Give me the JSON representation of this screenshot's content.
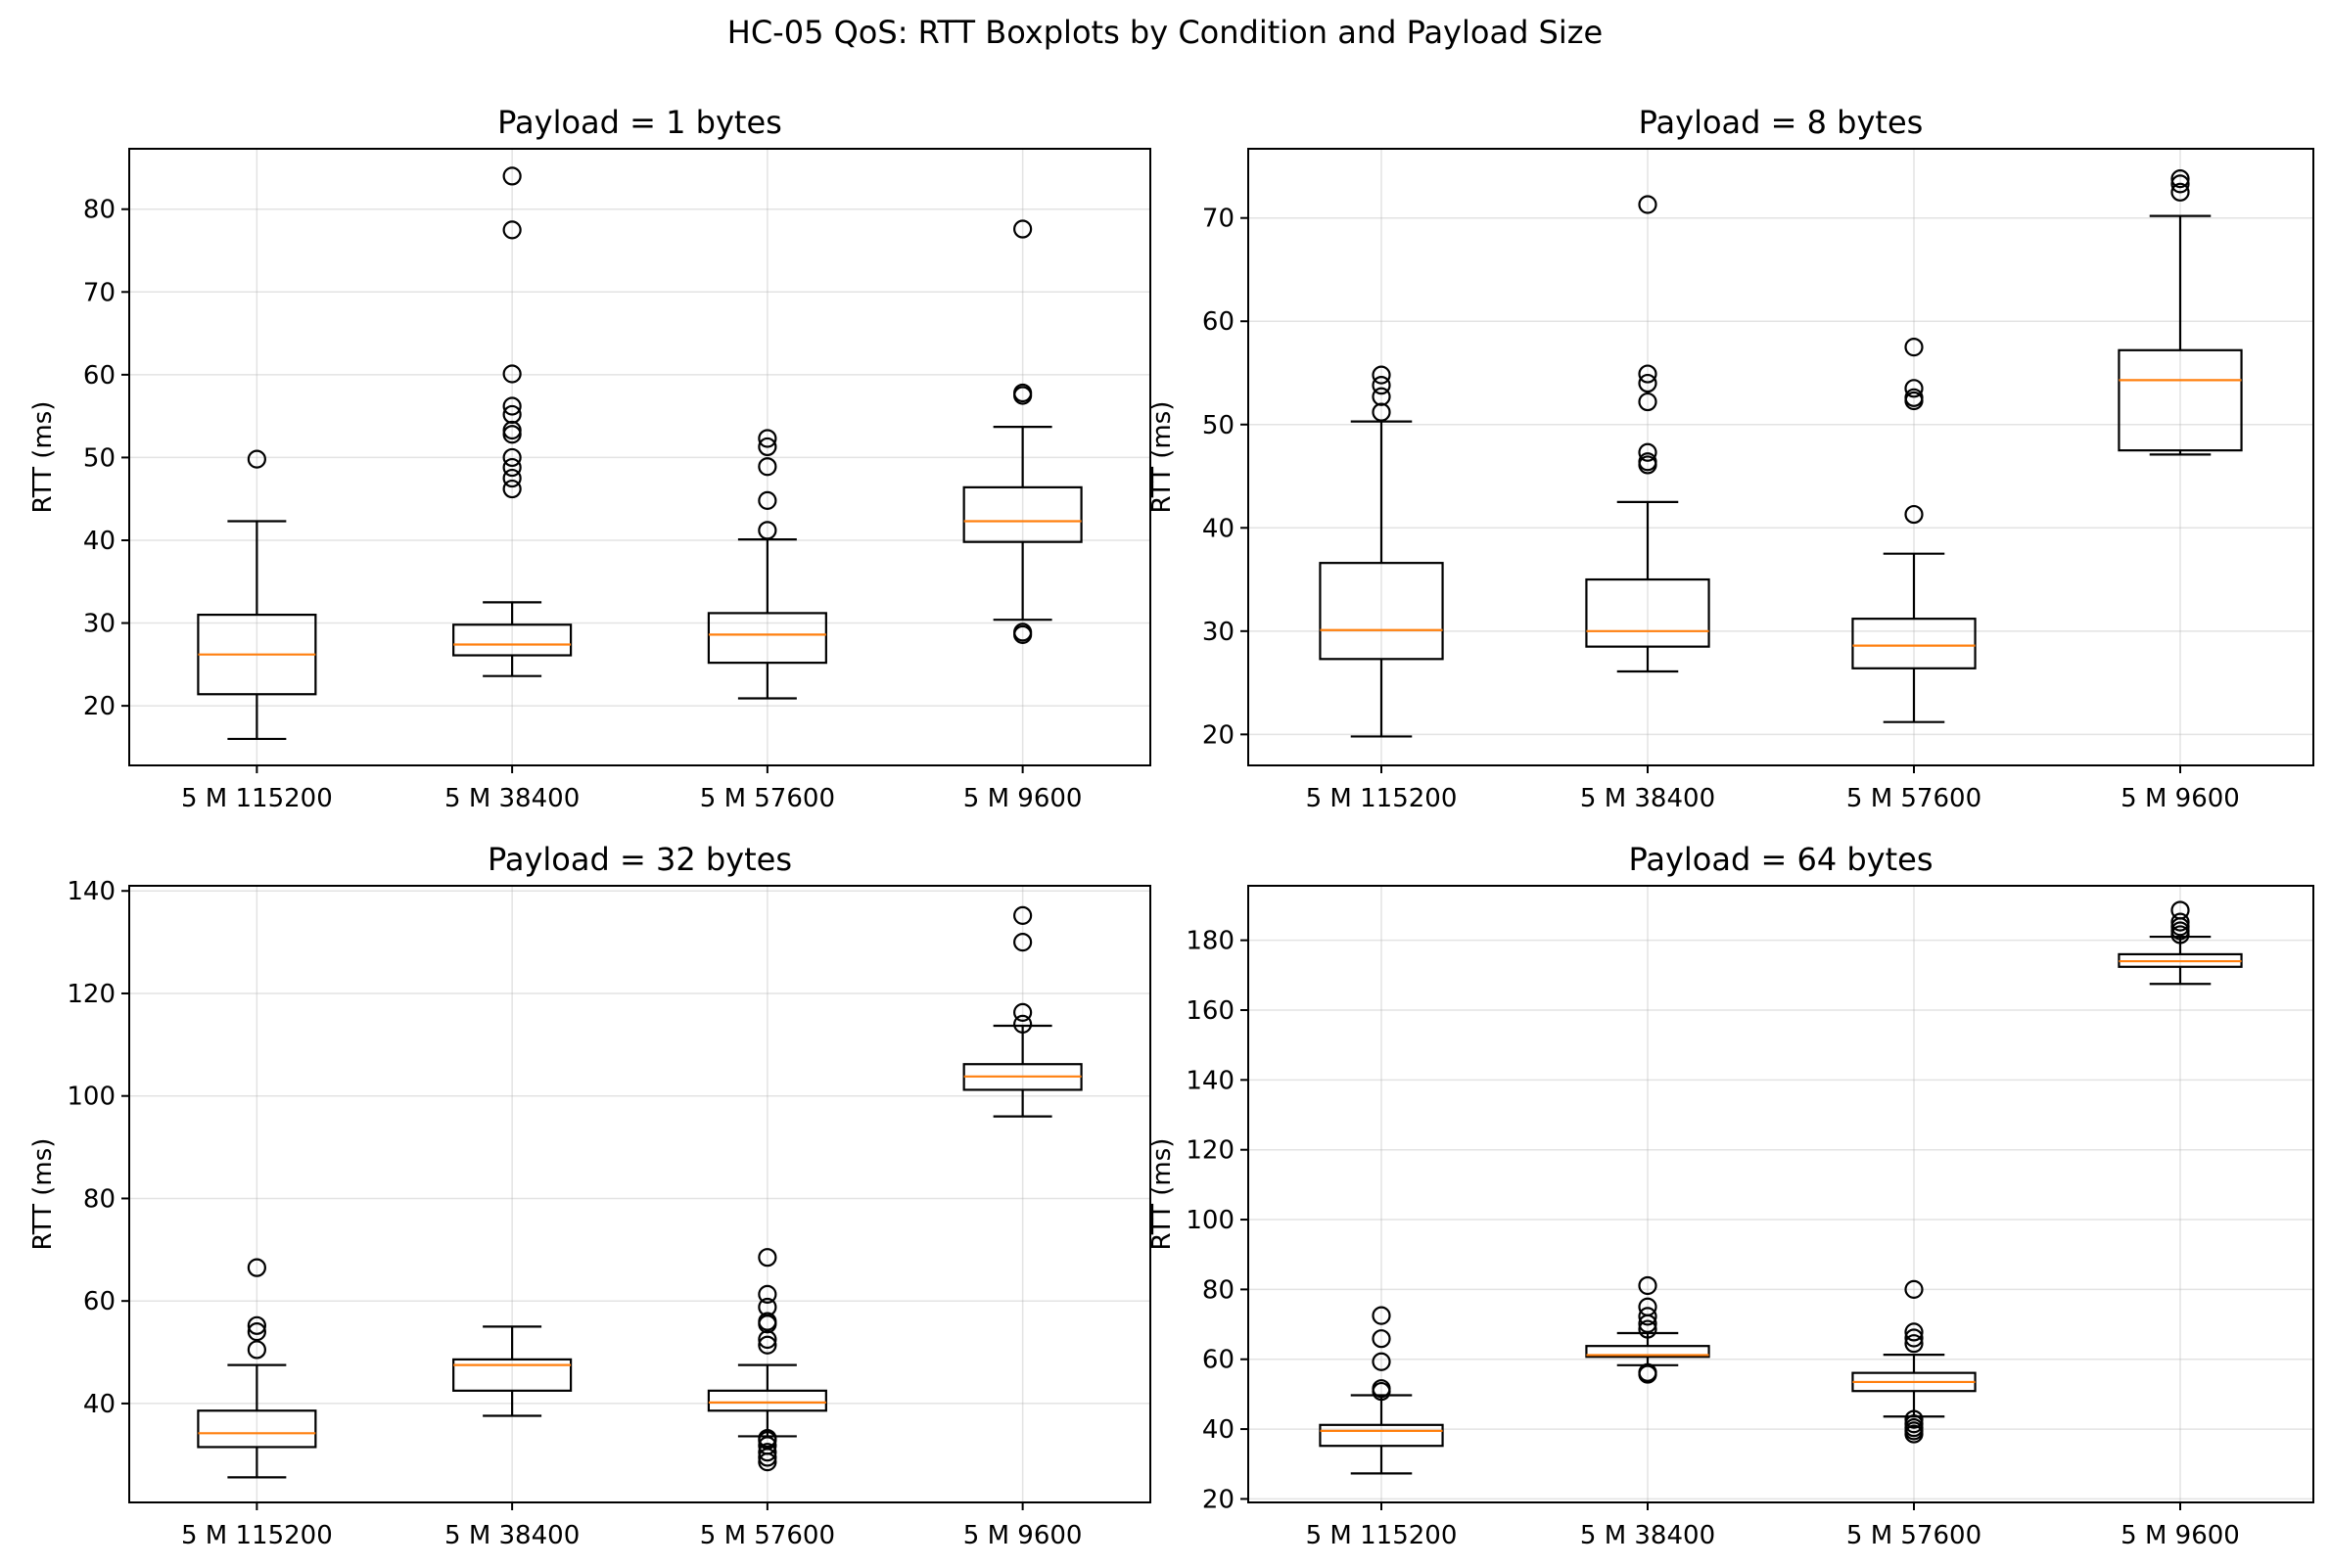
{
  "figure": {
    "title": "HC-05 QoS: RTT Boxplots by Condition and Payload Size"
  },
  "chart_data": [
    {
      "type": "box",
      "title": "Payload = 1 bytes",
      "xlabel": "",
      "ylabel": "RTT (ms)",
      "ylim": [
        12.8,
        87.3
      ],
      "yticks": [
        20,
        30,
        40,
        50,
        60,
        70,
        80
      ],
      "categories": [
        "5 M 115200",
        "5 M 38400",
        "5 M 57600",
        "5 M 9600"
      ],
      "grid": true,
      "boxes": [
        {
          "whislo": 16.0,
          "q1": 21.4,
          "med": 26.2,
          "q3": 31.0,
          "whishi": 42.3,
          "fliers": [
            49.8
          ]
        },
        {
          "whislo": 23.6,
          "q1": 26.1,
          "med": 27.4,
          "q3": 29.8,
          "whishi": 32.5,
          "fliers": [
            46.2,
            47.5,
            48.8,
            50.0,
            52.8,
            53.3,
            55.2,
            56.2,
            60.1,
            77.5,
            84.0
          ]
        },
        {
          "whislo": 20.9,
          "q1": 25.2,
          "med": 28.6,
          "q3": 31.2,
          "whishi": 40.1,
          "fliers": [
            41.2,
            44.8,
            48.9,
            51.3,
            52.3
          ]
        },
        {
          "whislo": 30.4,
          "q1": 39.8,
          "med": 42.3,
          "q3": 46.4,
          "whishi": 53.7,
          "fliers": [
            28.6,
            28.9,
            57.5,
            57.8,
            77.6
          ]
        }
      ]
    },
    {
      "type": "box",
      "title": "Payload = 8 bytes",
      "xlabel": "",
      "ylabel": "RTT (ms)",
      "ylim": [
        17.0,
        76.7
      ],
      "yticks": [
        20,
        30,
        40,
        50,
        60,
        70
      ],
      "categories": [
        "5 M 115200",
        "5 M 38400",
        "5 M 57600",
        "5 M 9600"
      ],
      "grid": true,
      "boxes": [
        {
          "whislo": 19.8,
          "q1": 27.3,
          "med": 30.1,
          "q3": 36.6,
          "whishi": 50.3,
          "fliers": [
            51.2,
            52.7,
            53.8,
            54.8
          ]
        },
        {
          "whislo": 26.1,
          "q1": 28.5,
          "med": 30.0,
          "q3": 35.0,
          "whishi": 42.5,
          "fliers": [
            46.1,
            46.4,
            47.3,
            52.2,
            54.0,
            54.9,
            71.3
          ]
        },
        {
          "whislo": 21.2,
          "q1": 26.4,
          "med": 28.6,
          "q3": 31.2,
          "whishi": 37.5,
          "fliers": [
            41.3,
            52.3,
            52.6,
            53.5,
            57.5
          ]
        },
        {
          "whislo": 47.1,
          "q1": 47.5,
          "med": 54.3,
          "q3": 57.2,
          "whishi": 70.2,
          "fliers": [
            72.5,
            73.3,
            73.8
          ]
        }
      ]
    },
    {
      "type": "box",
      "title": "Payload = 32 bytes",
      "xlabel": "",
      "ylabel": "RTT (ms)",
      "ylim": [
        20.7,
        141.0
      ],
      "yticks": [
        40,
        60,
        80,
        100,
        120,
        140
      ],
      "categories": [
        "5 M 115200",
        "5 M 38400",
        "5 M 57600",
        "5 M 9600"
      ],
      "grid": true,
      "boxes": [
        {
          "whislo": 25.6,
          "q1": 31.5,
          "med": 34.2,
          "q3": 38.6,
          "whishi": 47.5,
          "fliers": [
            50.5,
            54.0,
            55.2,
            66.5
          ]
        },
        {
          "whislo": 37.6,
          "q1": 42.5,
          "med": 47.5,
          "q3": 48.6,
          "whishi": 55.0,
          "fliers": []
        },
        {
          "whislo": 33.6,
          "q1": 38.6,
          "med": 40.2,
          "q3": 42.5,
          "whishi": 47.5,
          "fliers": [
            28.6,
            29.5,
            30.5,
            31.8,
            32.8,
            33.2,
            51.4,
            52.5,
            55.5,
            56.0,
            58.8,
            61.3,
            68.5
          ]
        },
        {
          "whislo": 96.0,
          "q1": 101.2,
          "med": 103.8,
          "q3": 106.2,
          "whishi": 113.7,
          "fliers": [
            114.0,
            116.3,
            130.0,
            135.2
          ]
        }
      ]
    },
    {
      "type": "box",
      "title": "Payload = 64 bytes",
      "xlabel": "",
      "ylabel": "RTT (ms)",
      "ylim": [
        19.0,
        195.6
      ],
      "yticks": [
        20,
        40,
        60,
        80,
        100,
        120,
        140,
        160,
        180
      ],
      "categories": [
        "5 M 115200",
        "5 M 38400",
        "5 M 57600",
        "5 M 9600"
      ],
      "grid": true,
      "boxes": [
        {
          "whislo": 27.3,
          "q1": 35.2,
          "med": 39.5,
          "q3": 41.2,
          "whishi": 49.7,
          "fliers": [
            50.8,
            51.6,
            59.3,
            65.9,
            72.5
          ]
        },
        {
          "whislo": 58.3,
          "q1": 60.7,
          "med": 61.2,
          "q3": 63.8,
          "whishi": 67.5,
          "fliers": [
            55.7,
            56.2,
            68.6,
            70.2,
            72.3,
            75.0,
            81.1
          ]
        },
        {
          "whislo": 43.6,
          "q1": 50.9,
          "med": 53.5,
          "q3": 56.1,
          "whishi": 61.3,
          "fliers": [
            38.6,
            39.5,
            40.4,
            41.5,
            42.8,
            64.5,
            66.1,
            67.8,
            80.0
          ]
        },
        {
          "whislo": 167.5,
          "q1": 172.4,
          "med": 174.0,
          "q3": 176.0,
          "whishi": 181.0,
          "fliers": [
            181.6,
            182.7,
            183.9,
            185.2,
            188.6
          ]
        }
      ]
    }
  ]
}
